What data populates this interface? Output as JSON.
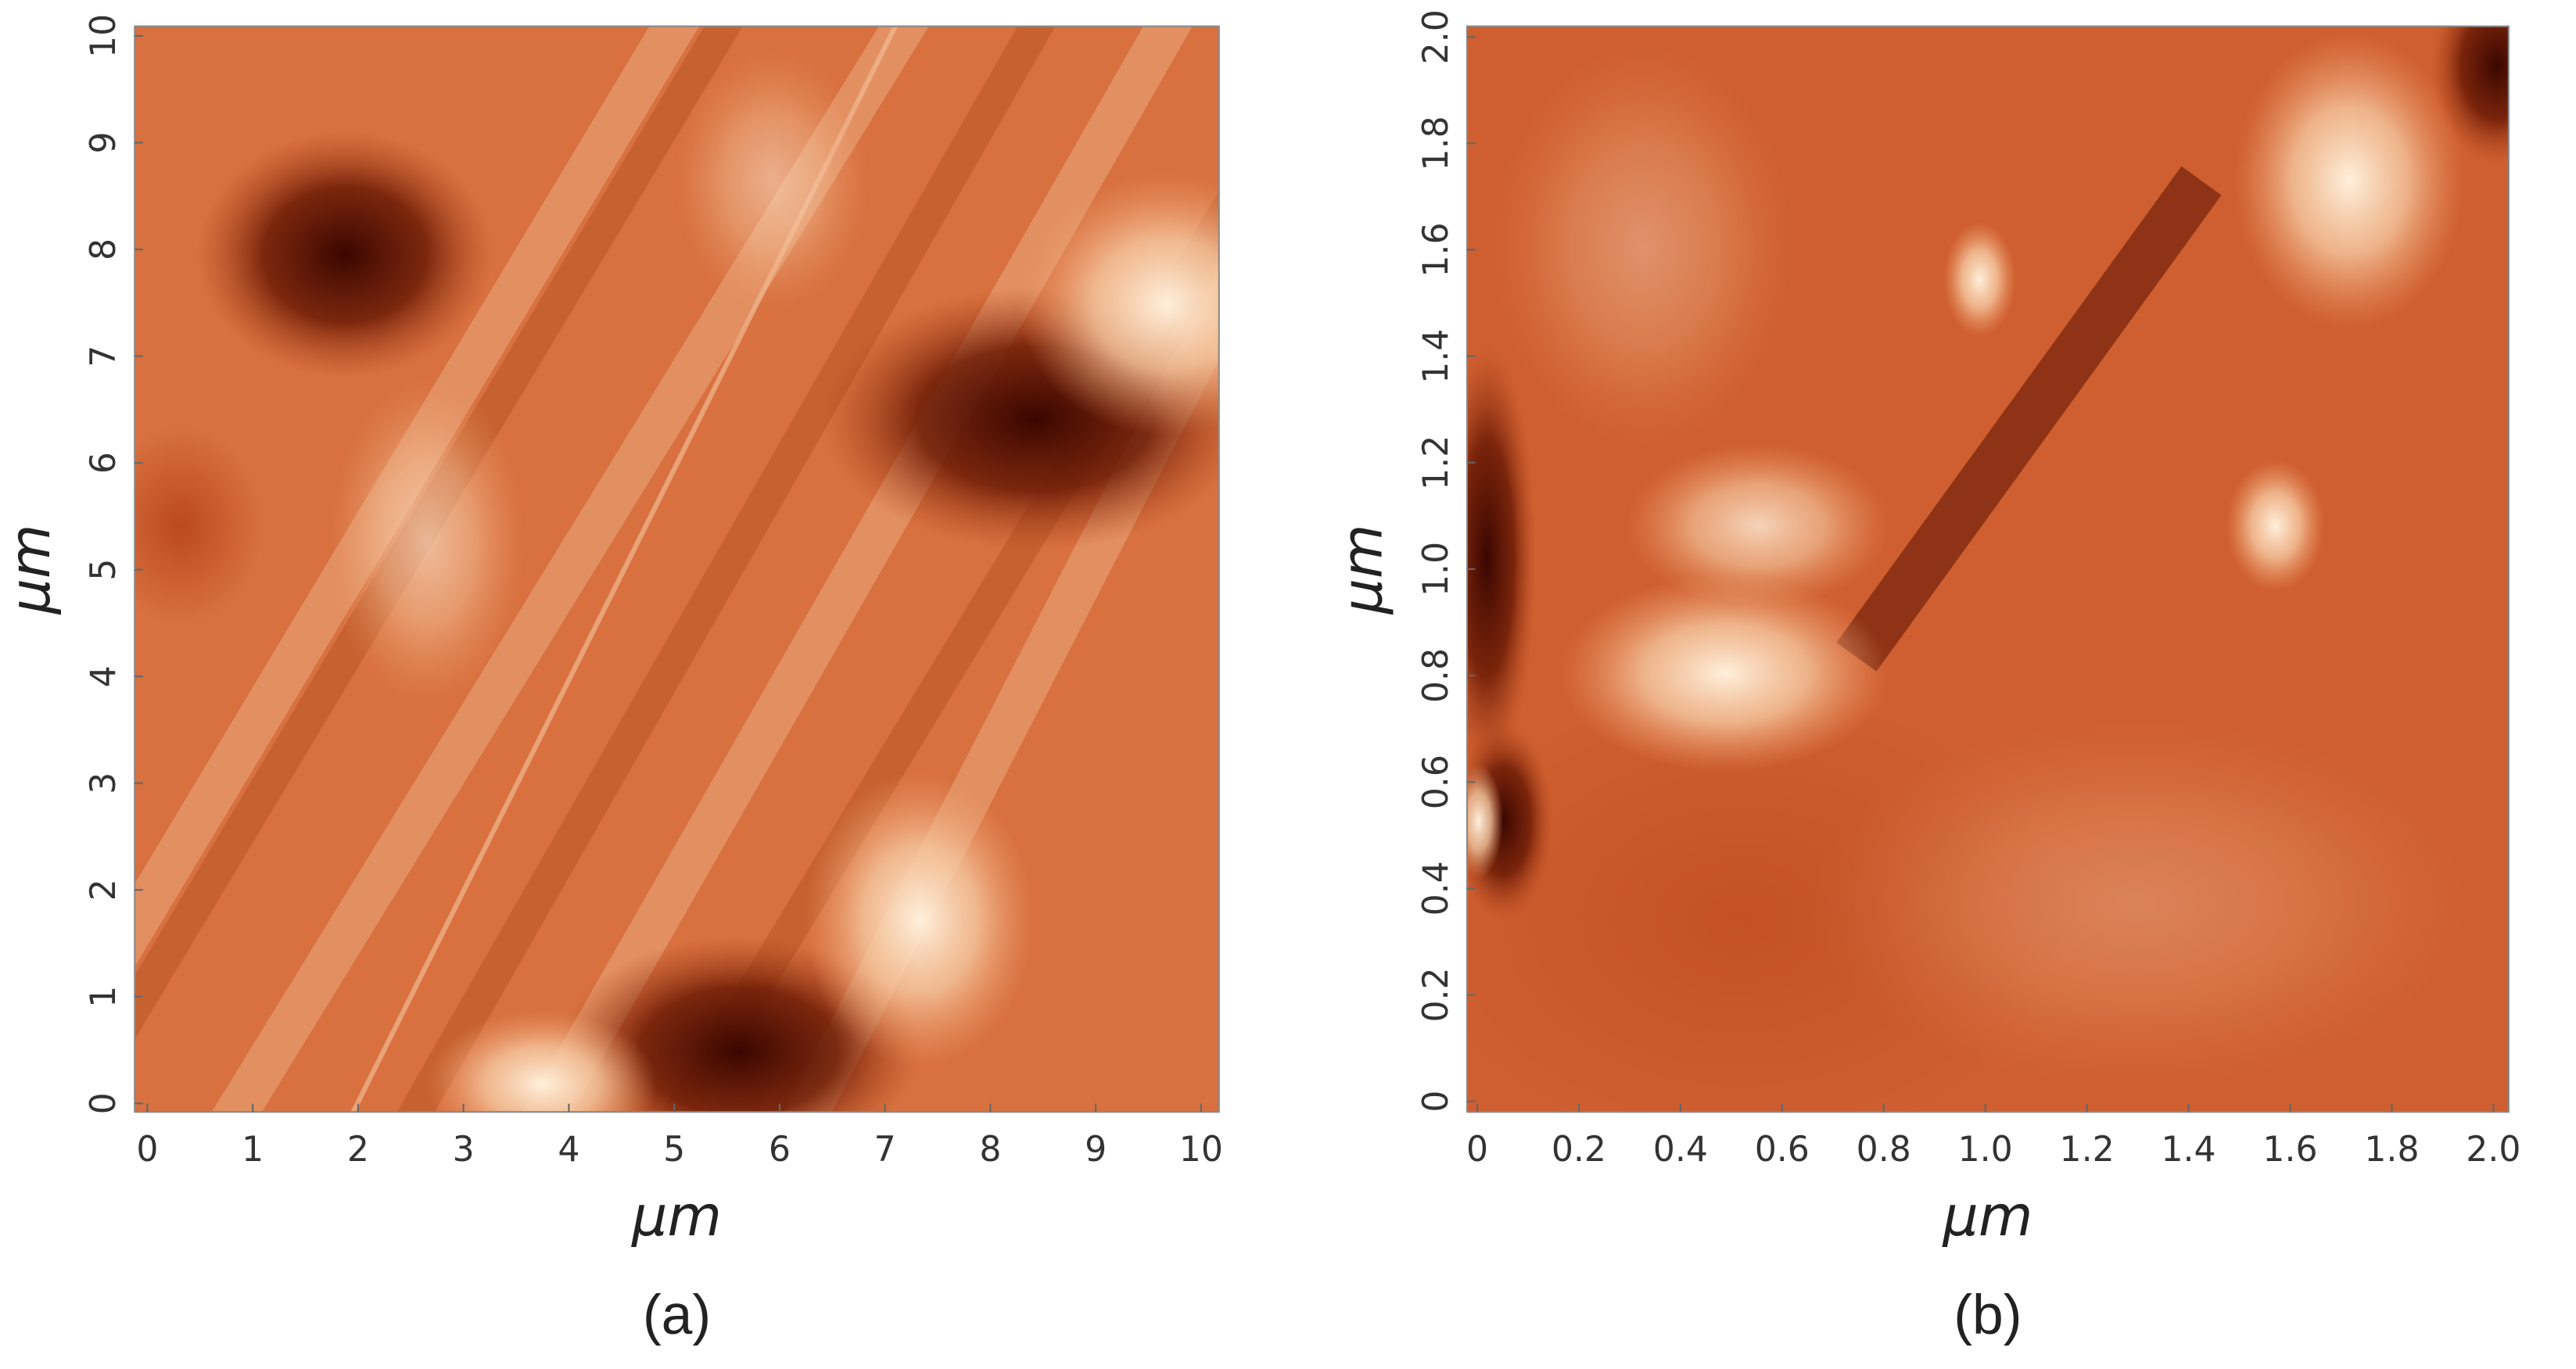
{
  "chart_data": [
    {
      "type": "image",
      "xlabel": "μm",
      "ylabel": "μm",
      "caption": "(a)",
      "xlim": [
        -0.12,
        10.17
      ],
      "ylim": [
        -0.08,
        10.09
      ],
      "xticks": [
        0,
        1,
        2,
        3,
        4,
        5,
        6,
        7,
        8,
        9,
        10
      ],
      "yticks": [
        0,
        1,
        2,
        3,
        4,
        5,
        6,
        7,
        8,
        9,
        10
      ]
    },
    {
      "type": "image",
      "xlabel": "μm",
      "ylabel": "μm",
      "caption": "(b)",
      "xlim": [
        -0.02,
        2.03
      ],
      "ylim": [
        -0.02,
        2.02
      ],
      "xticks": [
        0,
        0.2,
        0.4,
        0.6,
        0.8,
        {
          "value": 1,
          "label": "1.0"
        },
        1.2,
        1.4,
        1.6,
        1.8,
        {
          "value": 2,
          "label": "2.0"
        }
      ],
      "yticks": [
        0,
        0.2,
        0.4,
        0.6,
        0.8,
        {
          "value": 1,
          "label": "1.0"
        },
        1.2,
        1.4,
        1.6,
        1.8,
        {
          "value": 2,
          "label": "2.0"
        }
      ]
    }
  ]
}
